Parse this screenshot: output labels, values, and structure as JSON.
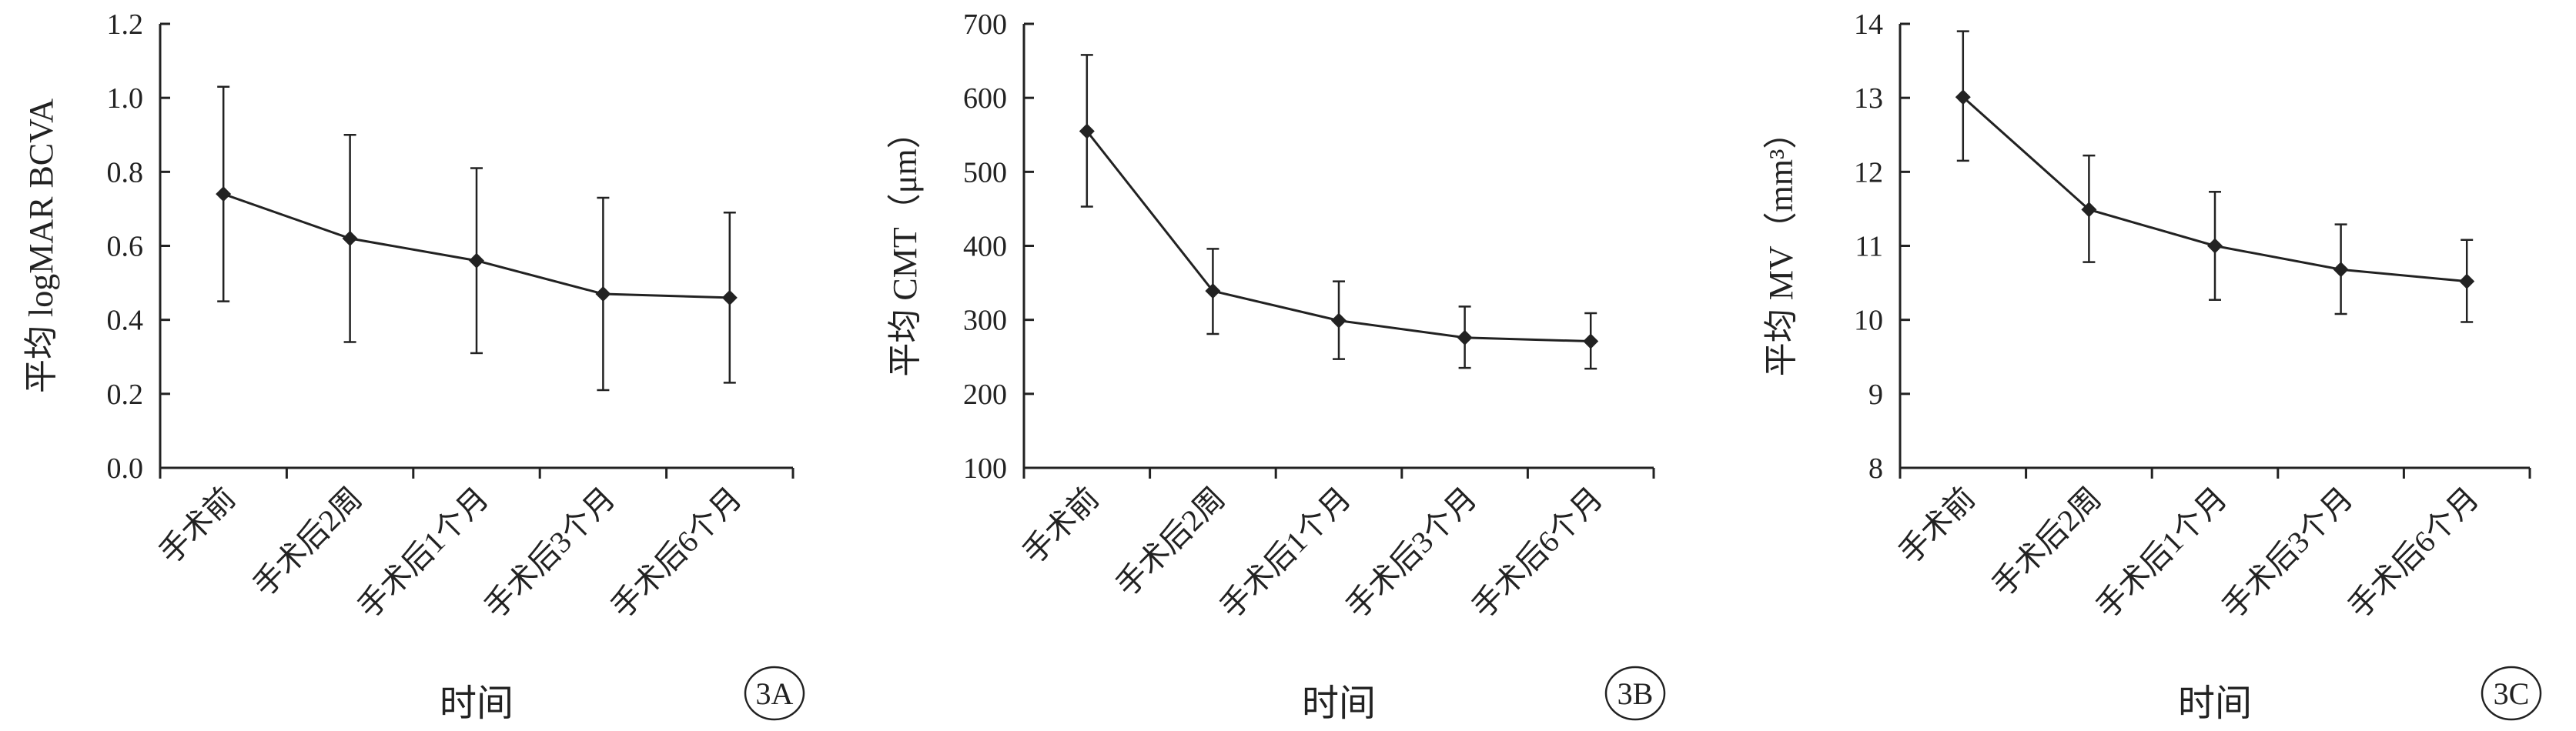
{
  "colors": {
    "line": "#222222",
    "axis": "#222222",
    "background": "#ffffff"
  },
  "chart_data": [
    {
      "type": "line",
      "panel_label": "3A",
      "xlabel": "时间",
      "ylabel": "平均 logMAR BCVA",
      "categories": [
        "手术前",
        "手术后2周",
        "手术后1个月",
        "手术后3个月",
        "手术后6个月"
      ],
      "ylim": [
        0,
        1.2
      ],
      "yticks": [
        "0.0",
        "0.2",
        "0.4",
        "0.6",
        "0.8",
        "1.0",
        "1.2"
      ],
      "grid": false,
      "legend": "none",
      "series": [
        {
          "values": [
            0.74,
            0.62,
            0.56,
            0.47,
            0.46
          ],
          "error_low": [
            0.45,
            0.34,
            0.31,
            0.21,
            0.23
          ],
          "error_high": [
            1.03,
            0.9,
            0.81,
            0.73,
            0.69
          ]
        }
      ]
    },
    {
      "type": "line",
      "panel_label": "3B",
      "xlabel": "时间",
      "ylabel": "平均 CMT（μm）",
      "categories": [
        "手术前",
        "手术后2周",
        "手术后1个月",
        "手术后3个月",
        "手术后6个月"
      ],
      "ylim": [
        100,
        700
      ],
      "yticks": [
        "100",
        "200",
        "300",
        "400",
        "500",
        "600",
        "700"
      ],
      "grid": false,
      "legend": "none",
      "series": [
        {
          "values": [
            555,
            339,
            299,
            276,
            271
          ],
          "error_low": [
            453,
            281,
            247,
            235,
            234
          ],
          "error_high": [
            658,
            396,
            352,
            318,
            309
          ]
        }
      ]
    },
    {
      "type": "line",
      "panel_label": "3C",
      "xlabel": "时间",
      "ylabel": "平均 MV（mm³）",
      "categories": [
        "手术前",
        "手术后2周",
        "手术后1个月",
        "手术后3个月",
        "手术后6个月"
      ],
      "ylim": [
        8,
        14
      ],
      "yticks": [
        "8",
        "9",
        "10",
        "11",
        "12",
        "13",
        "14"
      ],
      "grid": false,
      "legend": "none",
      "series": [
        {
          "values": [
            13.01,
            11.49,
            11.0,
            10.68,
            10.52
          ],
          "error_low": [
            12.15,
            10.78,
            10.27,
            10.08,
            9.97
          ],
          "error_high": [
            13.9,
            12.22,
            11.73,
            11.29,
            11.08
          ]
        }
      ]
    }
  ]
}
